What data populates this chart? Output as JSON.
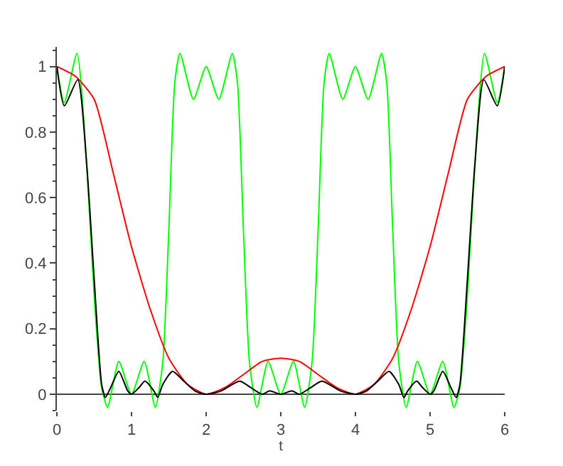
{
  "chart_data": {
    "type": "line",
    "xlabel": "t",
    "xlim": [
      0,
      6
    ],
    "xticks": [
      0,
      1,
      2,
      3,
      4,
      5,
      6
    ],
    "ylim": [
      -0.05,
      1.06
    ],
    "yticks": [
      0,
      0.2,
      0.4,
      0.6,
      0.8,
      1
    ],
    "line_style": "solid",
    "series": [
      {
        "color": "#00ff00",
        "x": [
          0,
          0.1,
          0.27,
          0.4,
          0.5,
          0.6,
          0.68,
          0.83,
          1,
          1.17,
          1.32,
          1.42,
          1.5,
          1.58,
          1.65,
          1.83,
          2,
          2.17,
          2.35,
          2.42,
          2.5,
          2.58,
          2.68,
          2.83,
          3,
          3.17,
          3.32,
          3.42,
          3.5,
          3.58,
          3.65,
          3.83,
          4,
          4.17,
          4.35,
          4.42,
          4.5,
          4.58,
          4.68,
          4.83,
          5,
          5.17,
          5.32,
          5.4,
          5.5,
          5.6,
          5.73,
          5.9,
          6
        ],
        "values": [
          1,
          0.89,
          1.04,
          0.7,
          0.3,
          0.02,
          -0.04,
          0.1,
          0,
          0.1,
          -0.04,
          0.1,
          0.5,
          0.95,
          1.04,
          0.9,
          1,
          0.9,
          1.04,
          0.95,
          0.5,
          0.1,
          -0.04,
          0.1,
          0,
          0.1,
          -0.04,
          0.1,
          0.5,
          0.95,
          1.04,
          0.9,
          1,
          0.9,
          1.04,
          0.95,
          0.5,
          0.1,
          -0.04,
          0.1,
          0,
          0.1,
          -0.04,
          0.02,
          0.3,
          0.7,
          1.04,
          0.89,
          1
        ]
      },
      {
        "color": "#ff0000",
        "x": [
          0,
          0.25,
          0.5,
          0.75,
          1,
          1.25,
          1.5,
          1.75,
          2,
          2.25,
          2.5,
          2.75,
          3,
          3.25,
          3.5,
          3.75,
          4,
          4.25,
          4.5,
          4.75,
          5,
          5.25,
          5.5,
          5.75,
          6
        ],
        "values": [
          1,
          0.97,
          0.9,
          0.68,
          0.45,
          0.26,
          0.11,
          0.03,
          0,
          0.02,
          0.06,
          0.1,
          0.11,
          0.1,
          0.06,
          0.02,
          0,
          0.03,
          0.11,
          0.26,
          0.45,
          0.68,
          0.9,
          0.97,
          1
        ]
      },
      {
        "color": "#000000",
        "x": [
          0,
          0.1,
          0.28,
          0.4,
          0.5,
          0.6,
          0.65,
          0.72,
          0.83,
          0.95,
          1,
          1.1,
          1.18,
          1.3,
          1.35,
          1.42,
          1.55,
          1.7,
          1.85,
          2,
          2.2,
          2.45,
          2.6,
          2.75,
          2.85,
          3,
          3.15,
          3.25,
          3.4,
          3.55,
          3.8,
          4,
          4.15,
          4.3,
          4.45,
          4.58,
          4.65,
          4.7,
          4.82,
          4.9,
          5,
          5.05,
          5.17,
          5.28,
          5.35,
          5.4,
          5.5,
          5.6,
          5.72,
          5.9,
          6
        ],
        "values": [
          1,
          0.88,
          0.96,
          0.7,
          0.35,
          0.03,
          -0.01,
          0.02,
          0.07,
          0.01,
          0,
          0.02,
          0.04,
          0.01,
          -0.01,
          0.03,
          0.07,
          0.04,
          0.01,
          0,
          0.01,
          0.04,
          0.02,
          0,
          0.01,
          0,
          0.01,
          0,
          0.02,
          0.04,
          0.01,
          0,
          0.01,
          0.04,
          0.07,
          0.03,
          -0.01,
          0.01,
          0.04,
          0.02,
          0,
          0.01,
          0.07,
          0.02,
          -0.01,
          0.03,
          0.35,
          0.7,
          0.96,
          0.88,
          1
        ]
      }
    ]
  }
}
